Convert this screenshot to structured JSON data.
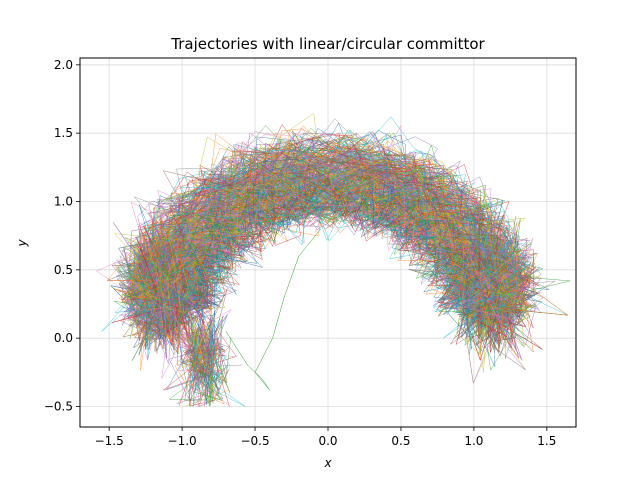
{
  "chart_data": {
    "type": "line",
    "title": "Trajectories with linear/circular committor",
    "xlabel": "x",
    "ylabel": "y",
    "xlim": [
      -1.7,
      1.7
    ],
    "ylim": [
      -0.65,
      2.05
    ],
    "xticks": [
      -1.5,
      -1.0,
      -0.5,
      0.0,
      0.5,
      1.0,
      1.5
    ],
    "xtick_labels": [
      "−1.5",
      "−1.0",
      "−0.5",
      "0.0",
      "0.5",
      "1.0",
      "1.5"
    ],
    "yticks": [
      -0.5,
      0.0,
      0.5,
      1.0,
      1.5,
      2.0
    ],
    "ytick_labels": [
      "−0.5",
      "0.0",
      "0.5",
      "1.0",
      "1.5",
      "2.0"
    ],
    "grid": true,
    "legend": "none",
    "series_description_shape": {
      "arc_center": [
        0.0,
        0.0
      ],
      "left_basin_center": [
        -1.15,
        0.25
      ],
      "right_basin_center": [
        1.15,
        0.25
      ],
      "stray_branch_min_y": -0.5
    },
    "colors": [
      "#1f77b4",
      "#ff7f0e",
      "#2ca02c",
      "#d62728",
      "#9467bd",
      "#8c564b",
      "#e377c2",
      "#7f7f7f",
      "#bcbd22",
      "#17becf"
    ]
  }
}
